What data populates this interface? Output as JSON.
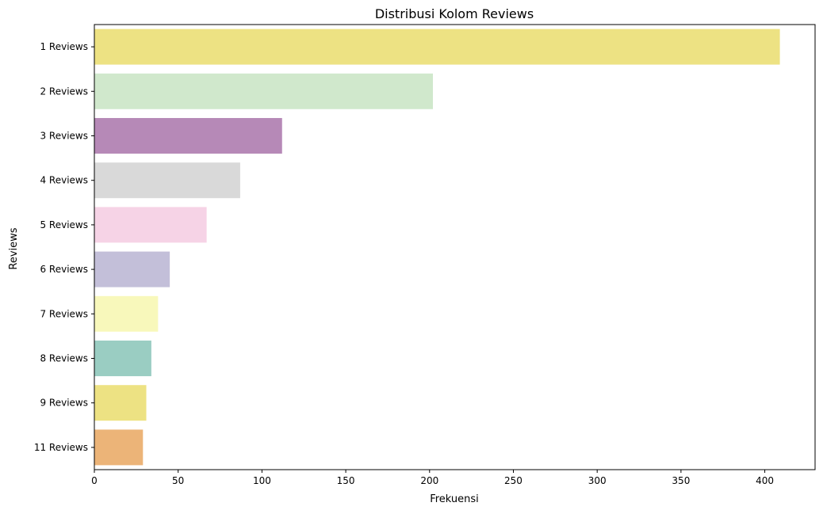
{
  "chart_data": {
    "type": "bar",
    "orientation": "horizontal",
    "title": "Distribusi Kolom Reviews",
    "xlabel": "Frekuensi",
    "ylabel": "Reviews",
    "xlim": [
      0,
      430
    ],
    "xticks": [
      0,
      50,
      100,
      150,
      200,
      250,
      300,
      350,
      400
    ],
    "grid": false,
    "categories": [
      "1 Reviews",
      "2 Reviews",
      "3 Reviews",
      "4 Reviews",
      "5 Reviews",
      "6 Reviews",
      "7 Reviews",
      "8 Reviews",
      "9 Reviews",
      "11 Reviews"
    ],
    "values": [
      409,
      202,
      112,
      87,
      67,
      45,
      38,
      34,
      31,
      29
    ],
    "colors": [
      "#ede283",
      "#d0e8cc",
      "#b689b7",
      "#d9d9d9",
      "#f6d3e6",
      "#c3bfd9",
      "#f8f8bb",
      "#9acdc2",
      "#ede283",
      "#ecb478"
    ]
  }
}
